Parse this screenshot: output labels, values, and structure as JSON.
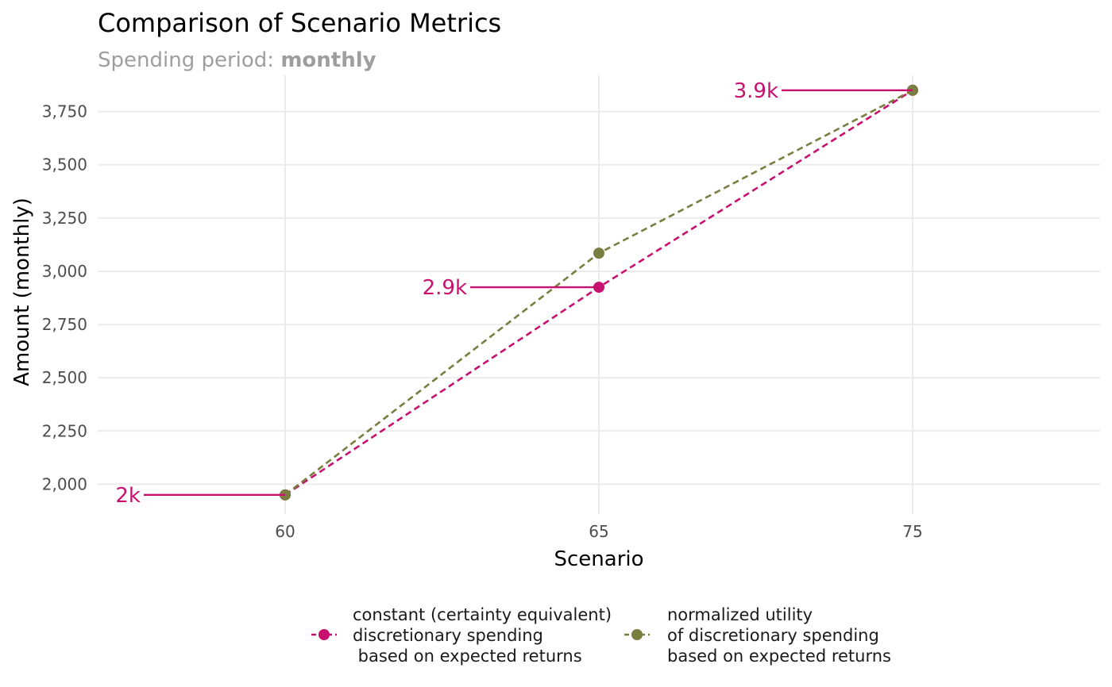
{
  "chart_data": {
    "type": "line",
    "title": "Comparison of Scenario Metrics",
    "subtitle": {
      "parts": [
        "Spending",
        "period:",
        "monthly"
      ],
      "bold": [
        false,
        false,
        true
      ]
    },
    "xlabel": "Scenario",
    "ylabel": "Amount (monthly)",
    "x_ticks": [
      "60",
      "65",
      "75"
    ],
    "y_ticks": [
      "2,000",
      "2,250",
      "2,500",
      "2,750",
      "3,000",
      "3,250",
      "3,500",
      "3,750"
    ],
    "y_tick_values": [
      2000,
      2250,
      2500,
      2750,
      3000,
      3250,
      3500,
      3750
    ],
    "ylim": [
      1860,
      3920
    ],
    "grid": true,
    "legend_position": "bottom",
    "series": [
      {
        "key": "constant",
        "name_lines": [
          "constant (certainty equivalent)",
          "discretionary spending",
          " based on expected returns"
        ],
        "color": "#C7106F",
        "line_style": "dashed",
        "values": [
          1950,
          2925,
          3850
        ],
        "labels": [
          "2k",
          "2.9k",
          "3.9k"
        ]
      },
      {
        "key": "utility",
        "name_lines": [
          "normalized utility",
          "of discretionary spending",
          "based on expected returns"
        ],
        "color": "#7A7D40",
        "line_style": "dashed",
        "values": [
          1950,
          3085,
          3850
        ]
      }
    ]
  }
}
